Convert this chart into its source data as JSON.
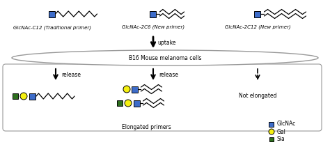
{
  "bg_color": "#ffffff",
  "blue_color": "#3d6cc9",
  "yellow_color": "#f5f010",
  "green_color": "#2d6e1e",
  "text_color": "#000000",
  "gray_color": "#999999",
  "labels": {
    "primer1": "GlcNAc-C12 (Traditional primer)",
    "primer2": "GlcNAc-2C6 (New primer)",
    "primer3": "GlcNAc-2C12 (New primer)",
    "cells": "B16 Mouse melanoma cells",
    "uptake": "uptake",
    "release1": "release",
    "release2": "release",
    "not_elongated": "Not elongated",
    "elongated": "Elongated primers",
    "legend_glcnac": "GlcNAc",
    "legend_gal": "Gal",
    "legend_sia": "Sia"
  },
  "figsize": [
    4.74,
    2.21
  ],
  "dpi": 100
}
